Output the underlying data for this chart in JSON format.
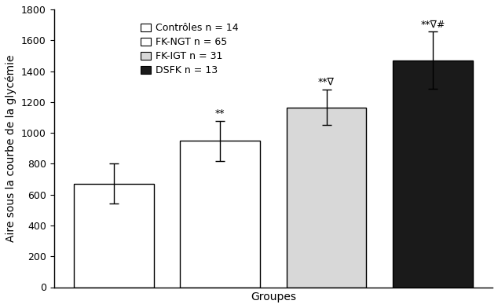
{
  "categories": [
    "",
    "",
    "",
    ""
  ],
  "values": [
    670,
    948,
    1165,
    1470
  ],
  "errors": [
    130,
    130,
    115,
    185
  ],
  "bar_colors": [
    "white",
    "white",
    "#d8d8d8",
    "#1a1a1a"
  ],
  "bar_edgecolors": [
    "black",
    "black",
    "black",
    "black"
  ],
  "legend_labels": [
    "Contrôles n = 14",
    "FK-NGT n = 65",
    "FK-IGT n = 31",
    "DSFK n = 13"
  ],
  "legend_colors": [
    "white",
    "white",
    "#d8d8d8",
    "#1a1a1a"
  ],
  "annotations": [
    "",
    "**",
    "**∇",
    "**∇#"
  ],
  "ylabel": "Aire sous la courbe de la glycémie",
  "xlabel": "Groupes",
  "ylim": [
    0,
    1800
  ],
  "yticks": [
    0,
    200,
    400,
    600,
    800,
    1000,
    1200,
    1400,
    1600,
    1800
  ],
  "background_color": "#ffffff",
  "label_fontsize": 10,
  "tick_fontsize": 9,
  "legend_fontsize": 9,
  "bar_width": 0.75,
  "bar_spacing": 0.05
}
